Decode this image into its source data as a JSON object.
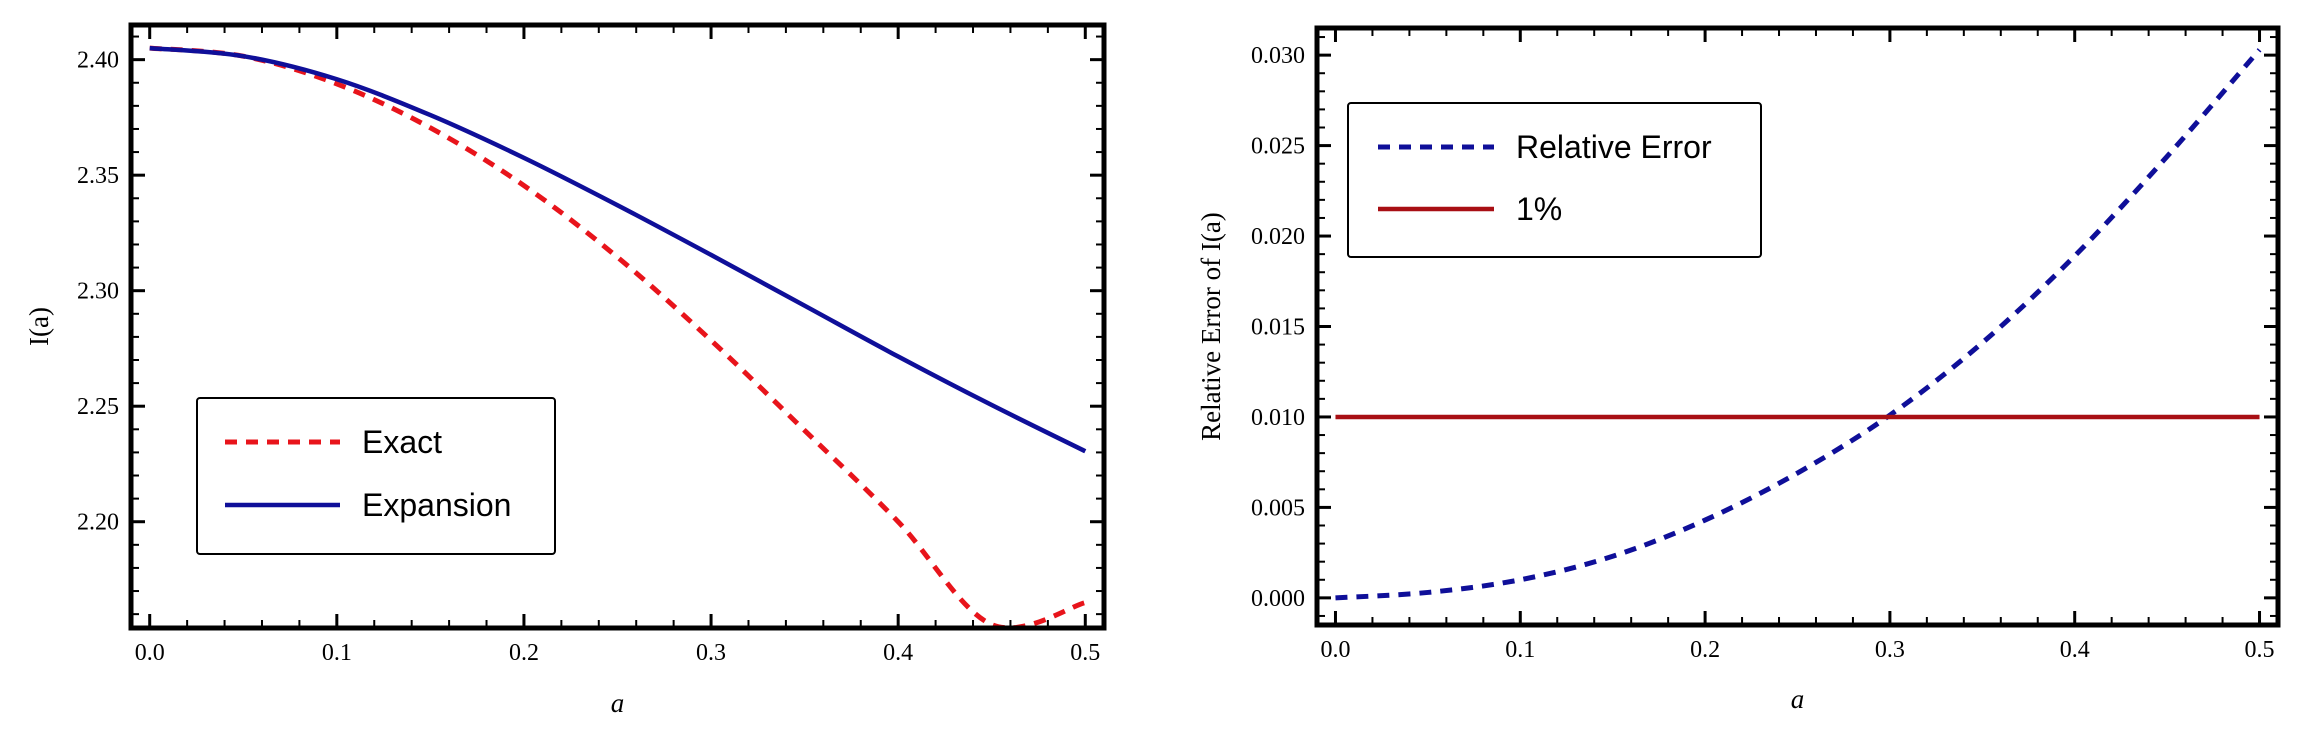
{
  "chart_data": [
    {
      "type": "line",
      "title": "",
      "xlabel": "a",
      "ylabel": "I(a)",
      "xlim": [
        -0.01,
        0.51
      ],
      "ylim": [
        2.154,
        2.415
      ],
      "xticks": [
        0.0,
        0.1,
        0.2,
        0.3,
        0.4,
        0.5
      ],
      "xtick_labels": [
        "0.0",
        "0.1",
        "0.2",
        "0.3",
        "0.4",
        "0.5"
      ],
      "yticks": [
        2.2,
        2.25,
        2.3,
        2.35,
        2.4
      ],
      "ytick_labels": [
        "2.20",
        "2.25",
        "2.30",
        "2.35",
        "2.40"
      ],
      "legend_position": "bottom-left",
      "series": [
        {
          "name": "Exact",
          "color": "#e8141b",
          "style": "dashed",
          "x": [
            0.0,
            0.05,
            0.1,
            0.15,
            0.2,
            0.25,
            0.3,
            0.35,
            0.4,
            0.45,
            0.5
          ],
          "y": [
            2.405,
            2.4015,
            2.3895,
            2.3705,
            2.3455,
            2.3145,
            2.2785,
            2.2395,
            2.2,
            2.1555,
            2.165
          ]
        },
        {
          "name": "Expansion",
          "color": "#0f0f99",
          "style": "solid",
          "x": [
            0.0,
            0.05,
            0.1,
            0.15,
            0.2,
            0.25,
            0.3,
            0.35,
            0.4,
            0.45,
            0.5
          ],
          "y": [
            2.405,
            2.4015,
            2.3915,
            2.376,
            2.3575,
            2.337,
            2.3155,
            2.2935,
            2.2715,
            2.2505,
            2.2305
          ]
        }
      ]
    },
    {
      "type": "line",
      "title": "",
      "xlabel": "a",
      "ylabel": "Relative Error of I(a)",
      "xlim": [
        -0.01,
        0.51
      ],
      "ylim": [
        -0.0015,
        0.0315
      ],
      "xticks": [
        0.0,
        0.1,
        0.2,
        0.3,
        0.4,
        0.5
      ],
      "xtick_labels": [
        "0.0",
        "0.1",
        "0.2",
        "0.3",
        "0.4",
        "0.5"
      ],
      "yticks": [
        0.0,
        0.005,
        0.01,
        0.015,
        0.02,
        0.025,
        0.03
      ],
      "ytick_labels": [
        "0.000",
        "0.005",
        "0.010",
        "0.015",
        "0.020",
        "0.025",
        "0.030"
      ],
      "legend_position": "top-left",
      "series": [
        {
          "name": "Relative Error",
          "color": "#0f0f99",
          "style": "dashed",
          "x": [
            0.0,
            0.05,
            0.1,
            0.15,
            0.2,
            0.25,
            0.3,
            0.35,
            0.4,
            0.45,
            0.5
          ],
          "y": [
            0.0,
            0.0003,
            0.001,
            0.0023,
            0.0043,
            0.0069,
            0.0101,
            0.0141,
            0.0189,
            0.0244,
            0.0303
          ]
        },
        {
          "name": "1%",
          "color": "#a80f14",
          "style": "solid",
          "x": [
            0.0,
            0.5
          ],
          "y": [
            0.01,
            0.01
          ]
        }
      ]
    }
  ]
}
